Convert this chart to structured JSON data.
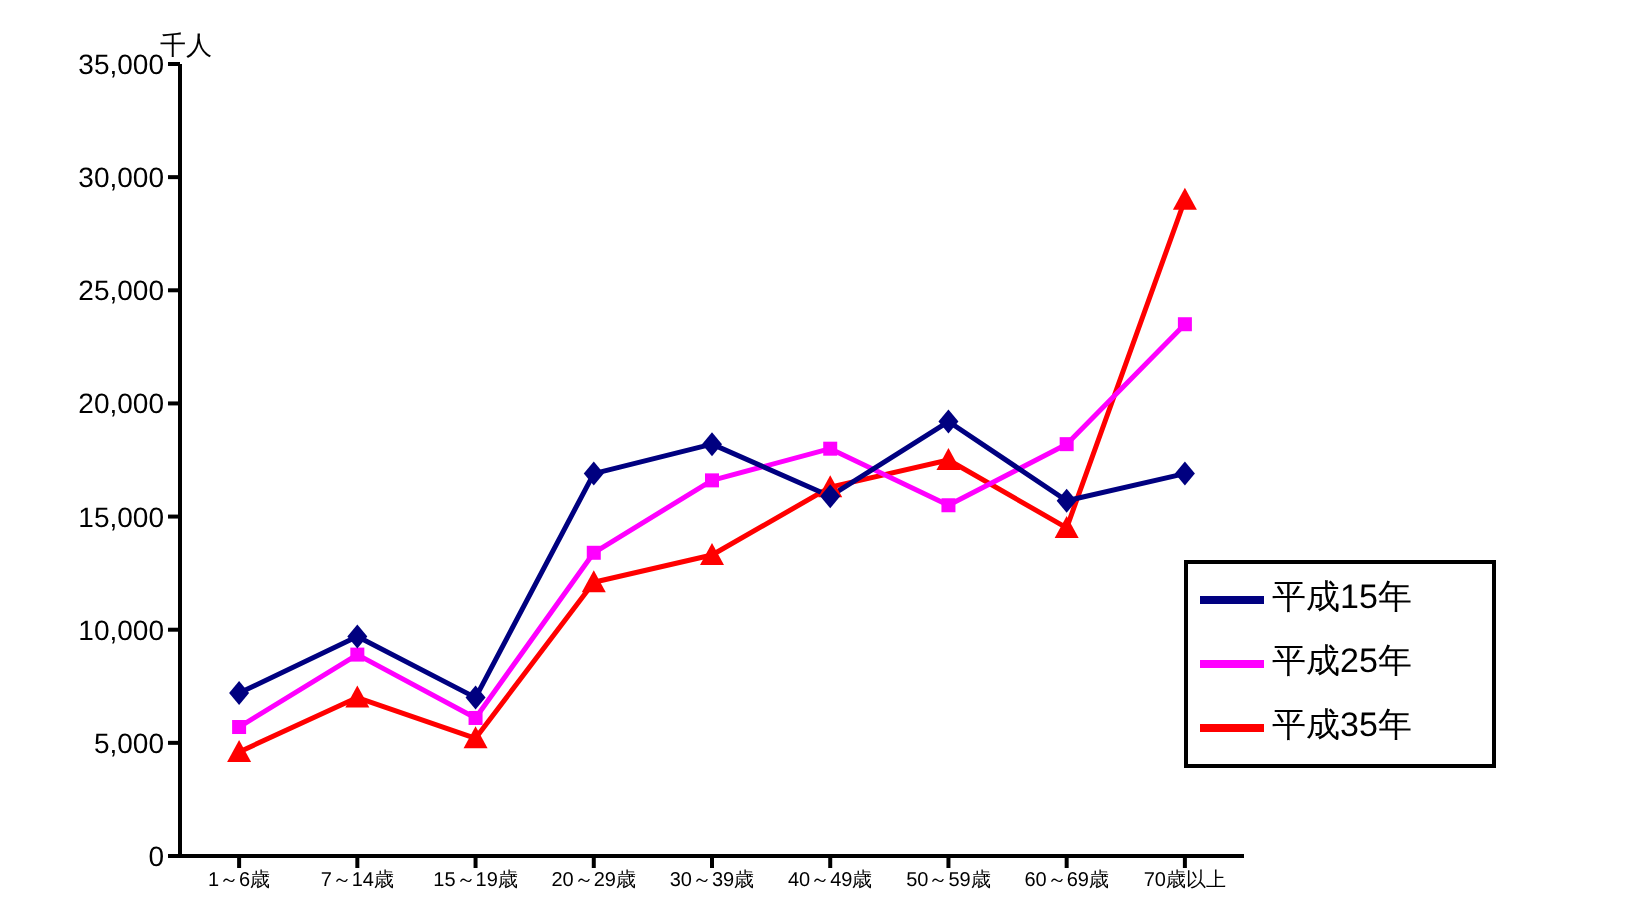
{
  "chart_data": {
    "type": "line",
    "ylabel": "千人",
    "categories": [
      "1～6歳",
      "7～14歳",
      "15～19歳",
      "20～29歳",
      "30～39歳",
      "40～49歳",
      "50～59歳",
      "60～69歳",
      "70歳以上"
    ],
    "series": [
      {
        "name": "平成15年",
        "color": "#000080",
        "marker": "diamond",
        "values": [
          7200,
          9700,
          7000,
          16900,
          18200,
          15900,
          19200,
          15700,
          16900
        ]
      },
      {
        "name": "平成25年",
        "color": "#ff00ff",
        "marker": "square",
        "values": [
          5700,
          8900,
          6100,
          13400,
          16600,
          18000,
          15500,
          18200,
          23500
        ]
      },
      {
        "name": "平成35年",
        "color": "#ff0000",
        "marker": "triangle",
        "values": [
          4600,
          7000,
          5200,
          12100,
          13300,
          16300,
          17500,
          14500,
          29000
        ]
      }
    ],
    "ylim": [
      0,
      35000
    ],
    "yticks": [
      0,
      {
        "value": 5000,
        "label": "5,000"
      },
      {
        "value": 10000,
        "label": "10,000"
      },
      {
        "value": 15000,
        "label": "15,000"
      },
      {
        "value": 20000,
        "label": "20,000"
      },
      {
        "value": 25000,
        "label": "25,000"
      },
      {
        "value": 30000,
        "label": "30,000"
      },
      {
        "value": 35000,
        "label": "35,000"
      }
    ],
    "grid": false,
    "legend": "bottom right",
    "line_style": "solid"
  }
}
